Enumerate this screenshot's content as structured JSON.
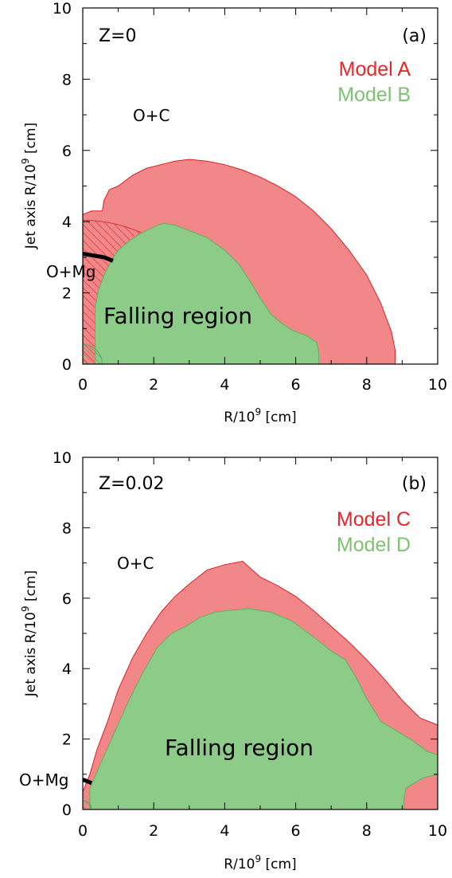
{
  "colors": {
    "red_fill": "#f2878a",
    "red_edge": "#e02020",
    "green_fill": "#8ccb88",
    "green_edge": "#5fb35b",
    "legend_red": "#e8262b",
    "legend_green": "#7cc36f",
    "hatch_red": "#d93636",
    "hatch_green": "#4caf50",
    "boundary": "#000000"
  },
  "chart_data": [
    {
      "type": "area",
      "panel_label": "(a)",
      "corner_text": "Z=0",
      "xlabel_main": "R/10",
      "xlabel_exp": "9",
      "xlabel_unit": " [cm]",
      "ylabel_main": "Jet axis R/10",
      "ylabel_exp": "9",
      "ylabel_unit": " [cm]",
      "xlim": [
        0,
        10
      ],
      "ylim": [
        0,
        10
      ],
      "xticks": [
        "0",
        "2",
        "4",
        "6",
        "8",
        "10"
      ],
      "yticks": [
        "0",
        "2",
        "4",
        "6",
        "8",
        "10"
      ],
      "legend": [
        "Model A",
        "Model B"
      ],
      "annotations": {
        "outer": "O+C",
        "inner": "O+Mg",
        "region": "Falling region"
      },
      "series": [
        {
          "name": "Model A",
          "x": [
            0,
            0,
            0.25,
            0.55,
            0.6,
            0.75,
            1.0,
            1.4,
            1.8,
            2.2,
            2.6,
            3.0,
            3.5,
            4.0,
            4.5,
            5.0,
            5.5,
            6.0,
            6.5,
            7.0,
            7.5,
            8.0,
            8.4,
            8.7,
            8.8,
            8.8
          ],
          "y": [
            0,
            4.2,
            4.3,
            4.3,
            4.6,
            4.9,
            5.0,
            5.3,
            5.5,
            5.6,
            5.7,
            5.75,
            5.7,
            5.6,
            5.45,
            5.25,
            5.0,
            4.7,
            4.3,
            3.8,
            3.2,
            2.5,
            1.7,
            0.9,
            0.4,
            0
          ]
        },
        {
          "name": "Model B",
          "x": [
            0.35,
            0.35,
            0.45,
            0.6,
            0.8,
            1.0,
            1.3,
            1.6,
            1.9,
            2.1,
            2.3,
            2.6,
            3.0,
            3.5,
            4.0,
            4.4,
            4.7,
            5.0,
            5.3,
            5.6,
            5.9,
            6.3,
            6.6,
            6.65,
            6.65
          ],
          "y": [
            0,
            1.6,
            2.1,
            2.5,
            2.9,
            3.2,
            3.45,
            3.65,
            3.8,
            3.9,
            3.95,
            3.9,
            3.75,
            3.55,
            3.2,
            2.8,
            2.35,
            1.85,
            1.4,
            1.15,
            0.95,
            0.8,
            0.6,
            0.3,
            0
          ]
        }
      ],
      "boundary_om": {
        "x": [
          0,
          0.6,
          0.85
        ],
        "y": [
          3.1,
          3.0,
          2.9
        ]
      },
      "hatch_om_radius": 4.05,
      "hatch_core_radius": 0.55
    },
    {
      "type": "area",
      "panel_label": "(b)",
      "corner_text": "Z=0.02",
      "xlabel_main": "R/10",
      "xlabel_exp": "9",
      "xlabel_unit": " [cm]",
      "ylabel_main": "Jet axis R/10",
      "ylabel_exp": "9",
      "ylabel_unit": " [cm]",
      "xlim": [
        0,
        10
      ],
      "ylim": [
        0,
        10
      ],
      "xticks": [
        "0",
        "2",
        "4",
        "6",
        "8",
        "10"
      ],
      "yticks": [
        "0",
        "2",
        "4",
        "6",
        "8",
        "10"
      ],
      "legend": [
        "Model C",
        "Model D"
      ],
      "annotations": {
        "outer": "O+C",
        "inner": "O+Mg",
        "region": "Falling region"
      },
      "series": [
        {
          "name": "Model C",
          "x": [
            0,
            0,
            0.2,
            0.4,
            0.7,
            1.0,
            1.4,
            1.8,
            2.2,
            2.6,
            3.0,
            3.5,
            4.0,
            4.5,
            5.0,
            5.5,
            6.0,
            6.5,
            7.0,
            7.5,
            8.0,
            8.5,
            9.0,
            9.5,
            10.0,
            10.0
          ],
          "y": [
            0.3,
            0.5,
            1.0,
            1.7,
            2.5,
            3.4,
            4.3,
            5.0,
            5.6,
            6.05,
            6.4,
            6.8,
            6.95,
            7.05,
            6.6,
            6.35,
            6.05,
            5.65,
            5.2,
            4.75,
            4.25,
            3.7,
            3.1,
            2.6,
            2.4,
            0
          ]
        },
        {
          "name": "Model D",
          "x": [
            0.2,
            0.2,
            0.5,
            0.9,
            1.3,
            1.7,
            2.1,
            2.5,
            2.9,
            3.3,
            3.7,
            4.1,
            4.7,
            5.3,
            5.9,
            6.5,
            7.0,
            7.4,
            7.7,
            8.0,
            8.4,
            8.9,
            9.3,
            9.7,
            10.0,
            10.0,
            9.6,
            9.35,
            9.1,
            9.05,
            9.05
          ],
          "y": [
            0,
            0.6,
            1.3,
            2.2,
            3.1,
            3.9,
            4.6,
            5.0,
            5.2,
            5.45,
            5.6,
            5.65,
            5.7,
            5.6,
            5.35,
            4.9,
            4.5,
            4.25,
            3.75,
            3.15,
            2.5,
            2.2,
            1.95,
            1.65,
            1.55,
            1.0,
            0.9,
            0.75,
            0.6,
            0.3,
            0
          ]
        }
      ],
      "boundary_om": {
        "x": [
          0,
          0.25
        ],
        "y": [
          0.85,
          0.75
        ]
      },
      "hatch_om_radius": 0,
      "hatch_core_radius": 0.25
    }
  ]
}
